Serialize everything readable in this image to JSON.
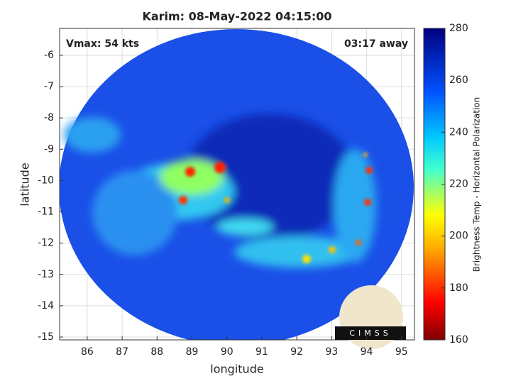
{
  "chart_data": {
    "type": "image",
    "title": "Karim: 08-May-2022 04:15:00",
    "annotations": [
      "Vmax: 54 kts",
      "03:17 away"
    ],
    "x_label": "longitude",
    "y_label": "latitude",
    "xlim": [
      85.21,
      95.37
    ],
    "xticks": [
      86,
      87,
      88,
      89,
      90,
      91,
      92,
      93,
      94,
      95
    ],
    "ylim": [
      -15.09,
      -5.14
    ],
    "yticks": [
      -15,
      -14,
      -13,
      -12,
      -11,
      -10,
      -9,
      -8,
      -7,
      -6
    ],
    "grid": true,
    "colorbar_label": "Brightness Temp - Horizontal Polarization",
    "clim": [
      160,
      280
    ],
    "cticks": [
      160,
      180,
      200,
      220,
      240,
      260,
      280
    ],
    "logo_text": "CIMSS"
  }
}
